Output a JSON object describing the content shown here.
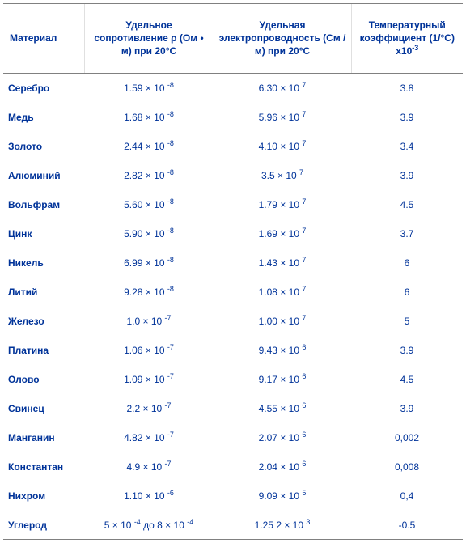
{
  "table": {
    "headers": {
      "material": "Материал",
      "resistivity": "Удельное сопротивление ρ (Ом • м) при 20°C",
      "conductivity": "Удельная электропроводность (См / м) при 20°C",
      "tempcoef": "Температурный коэффициент (1/°C) х10",
      "tempcoef_exp": "-3"
    },
    "rows": [
      {
        "material": "Серебро",
        "r_mant": "1.59",
        "r_exp": "-8",
        "c_mant": "6.30",
        "c_exp": "7",
        "tc": "3.8"
      },
      {
        "material": "Медь",
        "r_mant": "1.68",
        "r_exp": "-8",
        "c_mant": "5.96",
        "c_exp": "7",
        "tc": "3.9"
      },
      {
        "material": "Золото",
        "r_mant": "2.44",
        "r_exp": "-8",
        "c_mant": "4.10",
        "c_exp": "7",
        "tc": "3.4"
      },
      {
        "material": "Алюминий",
        "r_mant": "2.82",
        "r_exp": "-8",
        "c_mant": "3.5",
        "c_exp": "7",
        "tc": "3.9"
      },
      {
        "material": "Вольфрам",
        "r_mant": "5.60",
        "r_exp": "-8",
        "c_mant": "1.79",
        "c_exp": "7",
        "tc": "4.5"
      },
      {
        "material": "Цинк",
        "r_mant": "5.90",
        "r_exp": "-8",
        "c_mant": "1.69",
        "c_exp": "7",
        "tc": "3.7"
      },
      {
        "material": "Никель",
        "r_mant": "6.99",
        "r_exp": "-8",
        "c_mant": "1.43",
        "c_exp": "7",
        "tc": "6"
      },
      {
        "material": "Литий",
        "r_mant": "9.28",
        "r_exp": "-8",
        "c_mant": "1.08",
        "c_exp": "7",
        "tc": "6"
      },
      {
        "material": "Железо",
        "r_mant": "1.0",
        "r_exp": "-7",
        "c_mant": "1.00",
        "c_exp": "7",
        "tc": "5"
      },
      {
        "material": "Платина",
        "r_mant": "1.06",
        "r_exp": "-7",
        "c_mant": "9.43",
        "c_exp": "6",
        "tc": "3.9"
      },
      {
        "material": "Олово",
        "r_mant": "1.09",
        "r_exp": "-7",
        "c_mant": "9.17",
        "c_exp": "6",
        "tc": "4.5"
      },
      {
        "material": "Свинец",
        "r_mant": "2.2",
        "r_exp": "-7",
        "c_mant": "4.55",
        "c_exp": "6",
        "tc": "3.9"
      },
      {
        "material": "Манганин",
        "r_mant": "4.82",
        "r_exp": "-7",
        "c_mant": "2.07",
        "c_exp": "6",
        "tc": "0,002"
      },
      {
        "material": "Константан",
        "r_mant": "4.9",
        "r_exp": "-7",
        "c_mant": "2.04",
        "c_exp": "6",
        "tc": "0,008"
      },
      {
        "material": "Нихром",
        "r_mant": "1.10",
        "r_exp": "-6",
        "c_mant": "9.09",
        "c_exp": "5",
        "tc": "0,4"
      },
      {
        "material": "Углерод",
        "r_raw": "5 × 10 <sup>-4</sup> до 8 × 10 <sup>-4</sup>",
        "c_mant": "1.25 2",
        "c_exp": "3",
        "tc": "-0.5"
      }
    ]
  },
  "style": {
    "text_color": "#003399",
    "border_color": "#808080",
    "divider_color": "#e0e0e0",
    "background": "#ffffff",
    "font_family": "Arial",
    "header_fontsize_pt": 9,
    "cell_fontsize_pt": 9
  }
}
